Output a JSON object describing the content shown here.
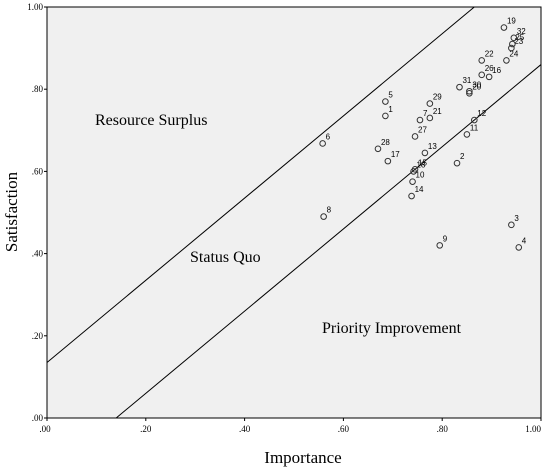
{
  "chart_data": {
    "type": "scatter",
    "title": "",
    "xlabel": "Importance",
    "ylabel": "Satisfaction",
    "xlim": [
      0,
      1
    ],
    "ylim": [
      0,
      1
    ],
    "x_ticks": [
      ".00",
      ".20",
      ".40",
      ".60",
      ".80",
      "1.00"
    ],
    "y_ticks": [
      ".00",
      ".20",
      ".40",
      ".60",
      ".80",
      "1.00"
    ],
    "grid": false,
    "background": "#f0f0f0",
    "regions": [
      "Resource Surplus",
      "Status Quo",
      "Priority Improvement"
    ],
    "reference_lines": [
      {
        "x1": 0.0,
        "y1": 0.135,
        "x2": 0.865,
        "y2": 1.0
      },
      {
        "x1": 0.14,
        "y1": 0.0,
        "x2": 1.0,
        "y2": 0.86
      }
    ],
    "points": [
      {
        "label": "1",
        "x": 0.685,
        "y": 0.735
      },
      {
        "label": "2",
        "x": 0.83,
        "y": 0.62
      },
      {
        "label": "3",
        "x": 0.94,
        "y": 0.47
      },
      {
        "label": "4",
        "x": 0.955,
        "y": 0.415
      },
      {
        "label": "5",
        "x": 0.685,
        "y": 0.77
      },
      {
        "label": "6",
        "x": 0.558,
        "y": 0.668
      },
      {
        "label": "7",
        "x": 0.755,
        "y": 0.725
      },
      {
        "label": "8",
        "x": 0.56,
        "y": 0.49
      },
      {
        "label": "9",
        "x": 0.795,
        "y": 0.42
      },
      {
        "label": "10",
        "x": 0.74,
        "y": 0.575
      },
      {
        "label": "11",
        "x": 0.85,
        "y": 0.69
      },
      {
        "label": "12",
        "x": 0.865,
        "y": 0.725
      },
      {
        "label": "13",
        "x": 0.765,
        "y": 0.645
      },
      {
        "label": "14",
        "x": 0.738,
        "y": 0.54
      },
      {
        "label": "15",
        "x": 0.745,
        "y": 0.605
      },
      {
        "label": "16",
        "x": 0.895,
        "y": 0.83
      },
      {
        "label": "17",
        "x": 0.69,
        "y": 0.625
      },
      {
        "label": "18",
        "x": 0.742,
        "y": 0.6
      },
      {
        "label": "19",
        "x": 0.925,
        "y": 0.95
      },
      {
        "label": "20",
        "x": 0.855,
        "y": 0.79
      },
      {
        "label": "21",
        "x": 0.775,
        "y": 0.73
      },
      {
        "label": "22",
        "x": 0.88,
        "y": 0.87
      },
      {
        "label": "23",
        "x": 0.94,
        "y": 0.9
      },
      {
        "label": "24",
        "x": 0.93,
        "y": 0.87
      },
      {
        "label": "25",
        "x": 0.942,
        "y": 0.91
      },
      {
        "label": "26",
        "x": 0.88,
        "y": 0.835
      },
      {
        "label": "27",
        "x": 0.745,
        "y": 0.685
      },
      {
        "label": "28",
        "x": 0.67,
        "y": 0.655
      },
      {
        "label": "29",
        "x": 0.775,
        "y": 0.765
      },
      {
        "label": "30",
        "x": 0.855,
        "y": 0.795
      },
      {
        "label": "31",
        "x": 0.835,
        "y": 0.805
      },
      {
        "label": "32",
        "x": 0.945,
        "y": 0.925
      }
    ]
  }
}
